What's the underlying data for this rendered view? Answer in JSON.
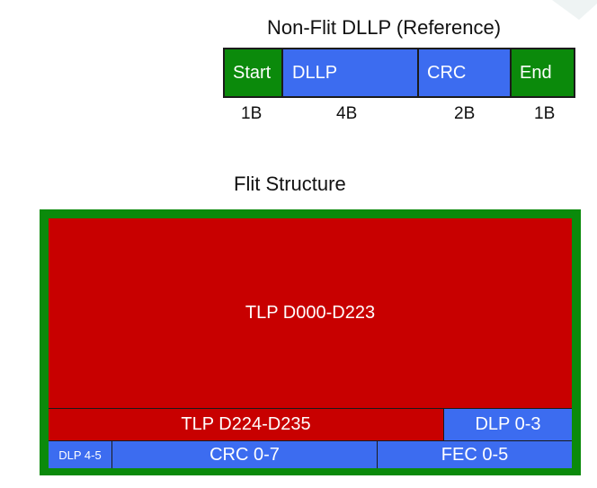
{
  "dllp": {
    "title": "Non-Flit DLLP (Reference)",
    "segments": [
      {
        "label": "Start",
        "color": "#0b8a0b"
      },
      {
        "label": "DLLP",
        "color": "#3c6cf0"
      },
      {
        "label": "CRC",
        "color": "#3c6cf0"
      },
      {
        "label": "End",
        "color": "#0b8a0b"
      }
    ],
    "sizes": [
      "1B",
      "4B",
      "2B",
      "1B"
    ]
  },
  "flit": {
    "title": "Flit Structure",
    "border_color": "#0b8a0b",
    "cells": {
      "tlp_main": "TLP D000-D223",
      "tlp_tail": "TLP D224-D235",
      "dlp_0_3": "DLP 0-3",
      "dlp_4_5": "DLP 4-5",
      "crc": "CRC 0-7",
      "fec": "FEC 0-5"
    }
  }
}
